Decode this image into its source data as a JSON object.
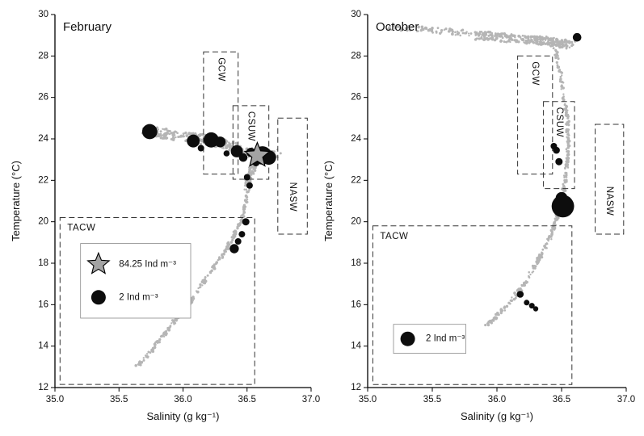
{
  "figure": {
    "background": "#ffffff",
    "colors": {
      "axis": "#000000",
      "scatter_gray": "#b5b5b5",
      "bubble": "#0d0d0d",
      "star_fill": "#a3a3a3",
      "box_dash": "#333333",
      "legend_border": "#8a8a8a"
    }
  },
  "chart_data": [
    {
      "id": "february",
      "type": "scatter",
      "title": "February",
      "xlabel": "Salinity (g kg⁻¹)",
      "ylabel": "Temperature (°C)",
      "xlim": [
        35.0,
        37.0
      ],
      "ylim": [
        12,
        30
      ],
      "xticks": [
        "35.0",
        "35.5",
        "36.0",
        "36.5",
        "37.0"
      ],
      "yticks": [
        12,
        14,
        16,
        18,
        20,
        22,
        24,
        26,
        28,
        30
      ],
      "grid": false,
      "water_masses": [
        {
          "label": "GCW",
          "s": [
            36.16,
            36.43
          ],
          "t": [
            22.3,
            28.2
          ],
          "orient": "vertical",
          "anchor": "top"
        },
        {
          "label": "CSUW",
          "s": [
            36.39,
            36.67
          ],
          "t": [
            22.05,
            25.6
          ],
          "orient": "vertical",
          "anchor": "top"
        },
        {
          "label": "NASW",
          "s": [
            36.74,
            36.97
          ],
          "t": [
            19.4,
            25.0
          ],
          "orient": "vertical",
          "anchor": "center",
          "label_t": 21.2
        },
        {
          "label": "TACW",
          "s": [
            35.04,
            36.56
          ],
          "t": [
            12.15,
            20.2
          ],
          "orient": "horizontal",
          "anchor": "topleft"
        }
      ],
      "ts_scatter_branches": [
        {
          "name": "surface-band",
          "points": [
            [
              35.7,
              24.45
            ],
            [
              35.85,
              24.25
            ],
            [
              36.0,
              24.1
            ],
            [
              36.15,
              24.0
            ],
            [
              36.3,
              23.8
            ],
            [
              36.42,
              23.5
            ],
            [
              36.52,
              23.3
            ],
            [
              36.62,
              23.2
            ],
            [
              36.73,
              23.3
            ]
          ],
          "n": 320,
          "jitter_s": 0.04,
          "jitter_t": 0.24
        },
        {
          "name": "thermocline-curve",
          "points": [
            [
              35.64,
              13.0
            ],
            [
              35.7,
              13.4
            ],
            [
              35.78,
              14.0
            ],
            [
              35.87,
              14.7
            ],
            [
              35.96,
              15.4
            ],
            [
              36.05,
              16.1
            ],
            [
              36.14,
              16.9
            ],
            [
              36.22,
              17.6
            ],
            [
              36.3,
              18.3
            ],
            [
              36.36,
              18.9
            ],
            [
              36.41,
              19.5
            ],
            [
              36.45,
              20.0
            ],
            [
              36.48,
              20.6
            ],
            [
              36.5,
              21.2
            ],
            [
              36.52,
              21.8
            ],
            [
              36.54,
              22.4
            ],
            [
              36.56,
              23.0
            ]
          ],
          "n": 250,
          "jitter_s": 0.012,
          "jitter_t": 0.09
        },
        {
          "name": "upper-connector",
          "points": [
            [
              36.49,
              21.6
            ],
            [
              36.53,
              22.3
            ],
            [
              36.56,
              22.9
            ]
          ],
          "n": 55,
          "jitter_s": 0.02,
          "jitter_t": 0.2
        }
      ],
      "bubbles_note": "each bubble = [salinity g/kg, temperature degC, abundance Ind/m3 (estimated from marker size, 2 Ind/m3 reference)]",
      "bubbles": [
        [
          35.74,
          24.35,
          2.2
        ],
        [
          36.08,
          23.9,
          1.6
        ],
        [
          36.14,
          23.55,
          0.4
        ],
        [
          36.22,
          23.95,
          2.2
        ],
        [
          36.29,
          23.85,
          1.1
        ],
        [
          36.34,
          23.3,
          0.35
        ],
        [
          36.42,
          23.4,
          1.4
        ],
        [
          36.47,
          23.1,
          0.7
        ],
        [
          36.53,
          23.35,
          0.8
        ],
        [
          36.57,
          22.85,
          0.5
        ],
        [
          36.62,
          23.2,
          3.2
        ],
        [
          36.67,
          23.1,
          2.0
        ],
        [
          36.5,
          22.15,
          0.4
        ],
        [
          36.52,
          21.75,
          0.4
        ],
        [
          36.49,
          20.0,
          0.5
        ],
        [
          36.46,
          19.4,
          0.4
        ],
        [
          36.43,
          19.05,
          0.4
        ],
        [
          36.4,
          18.7,
          0.8
        ]
      ],
      "star_marker": {
        "s": 36.58,
        "t": 23.2,
        "value": 84.25
      },
      "legend": {
        "box_s": [
          35.2,
          36.06
        ],
        "box_t": [
          15.35,
          18.95
        ],
        "items": [
          {
            "marker": "star",
            "label": "84.25 Ind m⁻³",
            "s": 35.34,
            "t": 17.95,
            "label_s": 35.5
          },
          {
            "marker": "circle",
            "label": "2 Ind m⁻³",
            "s": 35.34,
            "t": 16.35,
            "label_s": 35.5
          }
        ]
      }
    },
    {
      "id": "october",
      "type": "scatter",
      "title": "October",
      "xlabel": "Salinity (g kg⁻¹)",
      "ylabel": "Temperature (°C)",
      "xlim": [
        35.0,
        37.0
      ],
      "ylim": [
        12,
        30
      ],
      "xticks": [
        "35.0",
        "35.5",
        "36.0",
        "36.5",
        "37.0"
      ],
      "yticks": [
        12,
        14,
        16,
        18,
        20,
        22,
        24,
        26,
        28,
        30
      ],
      "grid": false,
      "water_masses": [
        {
          "label": "GCW",
          "s": [
            36.16,
            36.43
          ],
          "t": [
            22.3,
            28.0
          ],
          "orient": "vertical",
          "anchor": "top"
        },
        {
          "label": "CSUW",
          "s": [
            36.36,
            36.6
          ],
          "t": [
            21.6,
            25.8
          ],
          "orient": "vertical",
          "anchor": "top"
        },
        {
          "label": "NASW",
          "s": [
            36.76,
            36.98
          ],
          "t": [
            19.4,
            24.7
          ],
          "orient": "vertical",
          "anchor": "center",
          "label_t": 21.0
        },
        {
          "label": "TACW",
          "s": [
            35.04,
            36.58
          ],
          "t": [
            12.15,
            19.8
          ],
          "orient": "horizontal",
          "anchor": "topleft"
        }
      ],
      "ts_scatter_branches": [
        {
          "name": "surface-band-sparse",
          "points": [
            [
              35.17,
              29.4
            ],
            [
              35.4,
              29.3
            ],
            [
              35.62,
              29.2
            ],
            [
              35.82,
              29.05
            ]
          ],
          "n": 70,
          "jitter_s": 0.05,
          "jitter_t": 0.14
        },
        {
          "name": "surface-band-dense",
          "points": [
            [
              35.86,
              29.0
            ],
            [
              36.02,
              28.9
            ],
            [
              36.18,
              28.8
            ],
            [
              36.32,
              28.75
            ],
            [
              36.45,
              28.65
            ],
            [
              36.57,
              28.55
            ]
          ],
          "n": 280,
          "jitter_s": 0.05,
          "jitter_t": 0.2
        },
        {
          "name": "thermocline-curve",
          "points": [
            [
              35.92,
              15.0
            ],
            [
              35.99,
              15.4
            ],
            [
              36.07,
              15.9
            ],
            [
              36.15,
              16.5
            ],
            [
              36.22,
              17.1
            ],
            [
              36.29,
              17.8
            ],
            [
              36.35,
              18.5
            ],
            [
              36.41,
              19.2
            ],
            [
              36.45,
              19.9
            ],
            [
              36.48,
              20.6
            ],
            [
              36.51,
              21.3
            ],
            [
              36.53,
              22.0
            ],
            [
              36.54,
              22.8
            ],
            [
              36.55,
              23.6
            ],
            [
              36.55,
              24.4
            ],
            [
              36.54,
              25.2
            ],
            [
              36.52,
              26.0
            ],
            [
              36.5,
              26.8
            ],
            [
              36.48,
              27.6
            ],
            [
              36.45,
              28.3
            ]
          ],
          "n": 310,
          "jitter_s": 0.013,
          "jitter_t": 0.09
        }
      ],
      "bubbles_note": "each bubble = [salinity g/kg, temperature degC, abundance Ind/m3 (estimated from marker size, 2 Ind/m3 reference)]",
      "bubbles": [
        [
          36.62,
          28.9,
          0.7
        ],
        [
          36.44,
          23.65,
          0.4
        ],
        [
          36.46,
          23.45,
          0.45
        ],
        [
          36.48,
          22.9,
          0.5
        ],
        [
          36.5,
          21.15,
          1.3
        ],
        [
          36.51,
          20.75,
          4.8
        ],
        [
          36.18,
          16.5,
          0.45
        ],
        [
          36.23,
          16.1,
          0.3
        ],
        [
          36.27,
          15.95,
          0.3
        ],
        [
          36.3,
          15.8,
          0.25
        ]
      ],
      "star_marker": null,
      "legend": {
        "box_s": [
          35.2,
          35.76
        ],
        "box_t": [
          13.65,
          15.05
        ],
        "items": [
          {
            "marker": "circle",
            "label": "2 Ind m⁻³",
            "s": 35.31,
            "t": 14.35,
            "label_s": 35.45
          }
        ]
      }
    }
  ]
}
